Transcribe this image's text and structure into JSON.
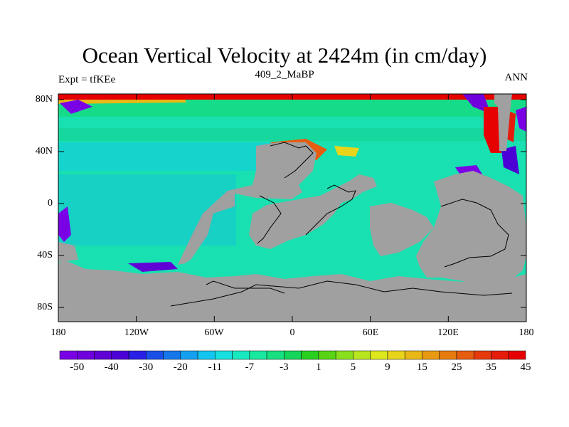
{
  "map": {
    "title": "Ocean Vertical Velocity at 2424m (in cm/day)",
    "experiment_label": "Expt = tfKEe",
    "age_label": "409_2_MaBP",
    "season_label": "ANN",
    "lat_labels": [
      "80N",
      "40N",
      "0",
      "40S",
      "80S"
    ],
    "lon_labels": [
      "180",
      "120W",
      "60W",
      "0",
      "60E",
      "120E",
      "180"
    ],
    "land_color": "#a0a0a0",
    "ocean_base_color": "#18e0b0"
  },
  "colorbar": {
    "labels": [
      "-50",
      "-40",
      "-30",
      "-20",
      "-11",
      "-7",
      "-3",
      "1",
      "5",
      "9",
      "15",
      "25",
      "35",
      "45"
    ],
    "colors": [
      "#7a00e6",
      "#7000dc",
      "#6000d6",
      "#4b00d6",
      "#2a1fe6",
      "#1a4fe8",
      "#1676ea",
      "#14a0f0",
      "#12c6ef",
      "#18e0e0",
      "#18e8c0",
      "#18e8a0",
      "#16e080",
      "#14d65a",
      "#2ad020",
      "#58d414",
      "#88e01c",
      "#b8e61e",
      "#dde81c",
      "#e8d41a",
      "#e8b816",
      "#e89a12",
      "#e67c10",
      "#e65c10",
      "#e63a0c",
      "#e61c0a",
      "#e60000"
    ]
  }
}
